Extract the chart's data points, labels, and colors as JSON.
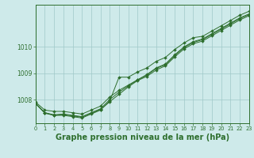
{
  "hours": [
    0,
    1,
    2,
    3,
    4,
    5,
    6,
    7,
    8,
    9,
    10,
    11,
    12,
    13,
    14,
    15,
    16,
    17,
    18,
    19,
    20,
    21,
    22,
    23
  ],
  "line1": [
    1007.9,
    1007.6,
    1007.55,
    1007.55,
    1007.5,
    1007.45,
    1007.6,
    1007.75,
    1008.1,
    1008.35,
    1008.55,
    1008.75,
    1008.95,
    1009.2,
    1009.35,
    1009.7,
    1010.0,
    1010.2,
    1010.3,
    1010.5,
    1010.7,
    1010.9,
    1011.1,
    1011.25
  ],
  "line2": [
    1007.85,
    1007.5,
    1007.4,
    1007.4,
    1007.35,
    1007.3,
    1007.45,
    1007.6,
    1007.95,
    1008.85,
    1008.85,
    1009.05,
    1009.2,
    1009.45,
    1009.6,
    1009.9,
    1010.15,
    1010.35,
    1010.4,
    1010.6,
    1010.8,
    1011.0,
    1011.2,
    1011.35
  ],
  "line3": [
    1007.85,
    1007.5,
    1007.42,
    1007.45,
    1007.4,
    1007.35,
    1007.5,
    1007.65,
    1008.0,
    1008.28,
    1008.52,
    1008.75,
    1008.92,
    1009.18,
    1009.32,
    1009.67,
    1009.97,
    1010.17,
    1010.27,
    1010.47,
    1010.67,
    1010.87,
    1011.07,
    1011.22
  ],
  "line4": [
    1007.85,
    1007.48,
    1007.4,
    1007.43,
    1007.38,
    1007.33,
    1007.48,
    1007.62,
    1007.92,
    1008.2,
    1008.48,
    1008.72,
    1008.88,
    1009.12,
    1009.28,
    1009.62,
    1009.92,
    1010.12,
    1010.22,
    1010.42,
    1010.62,
    1010.82,
    1011.02,
    1011.18
  ],
  "bg_color": "#ceeaea",
  "line_color": "#2d6e2d",
  "grid_color": "#a0c8c8",
  "ylabel_ticks": [
    1008,
    1009,
    1010
  ],
  "ylim": [
    1007.1,
    1011.6
  ],
  "xlim": [
    0,
    23
  ],
  "title": "Graphe pression niveau de la mer (hPa)",
  "title_color": "#2d6e2d",
  "title_fontsize": 7.0,
  "tick_fontsize": 5.5,
  "xtick_fontsize": 4.8
}
